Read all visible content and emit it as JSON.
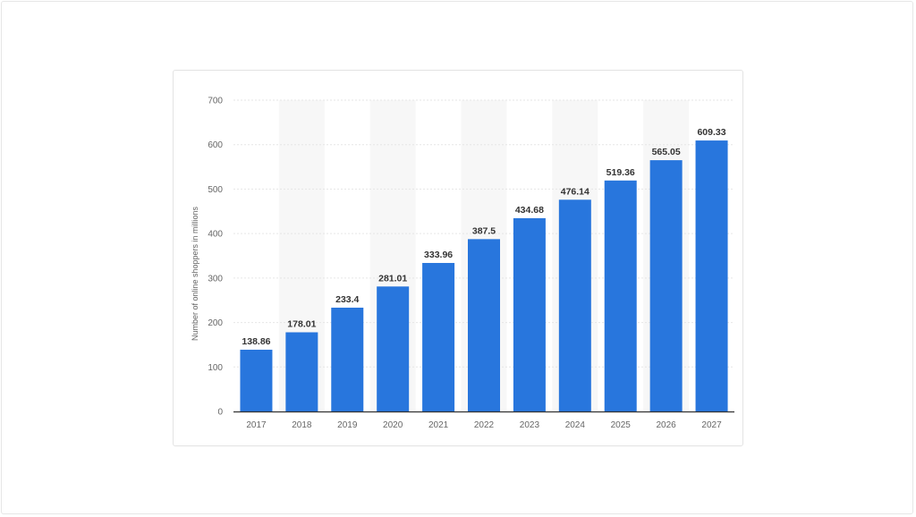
{
  "chart_data": {
    "type": "bar",
    "categories": [
      "2017",
      "2018",
      "2019",
      "2020",
      "2021",
      "2022",
      "2023",
      "2024",
      "2025",
      "2026",
      "2027"
    ],
    "values": [
      138.86,
      178.01,
      233.4,
      281.01,
      333.96,
      387.5,
      434.68,
      476.14,
      519.36,
      565.05,
      609.33
    ],
    "data_labels": [
      "138.86",
      "178.01",
      "233.4",
      "281.01",
      "333.96",
      "387.5",
      "434.68",
      "476.14",
      "519.36",
      "565.05",
      "609.33"
    ],
    "title": "",
    "xlabel": "",
    "ylabel": "Number of online shoppers in millions",
    "ylim": [
      0,
      700
    ],
    "yticks": [
      0,
      100,
      200,
      300,
      400,
      500,
      600,
      700
    ],
    "grid": true,
    "legend": "none",
    "colors": {
      "bar": "#2876dd",
      "grid": "#e6e6e6",
      "band": "#f7f7f7",
      "axis": "#333333"
    }
  }
}
